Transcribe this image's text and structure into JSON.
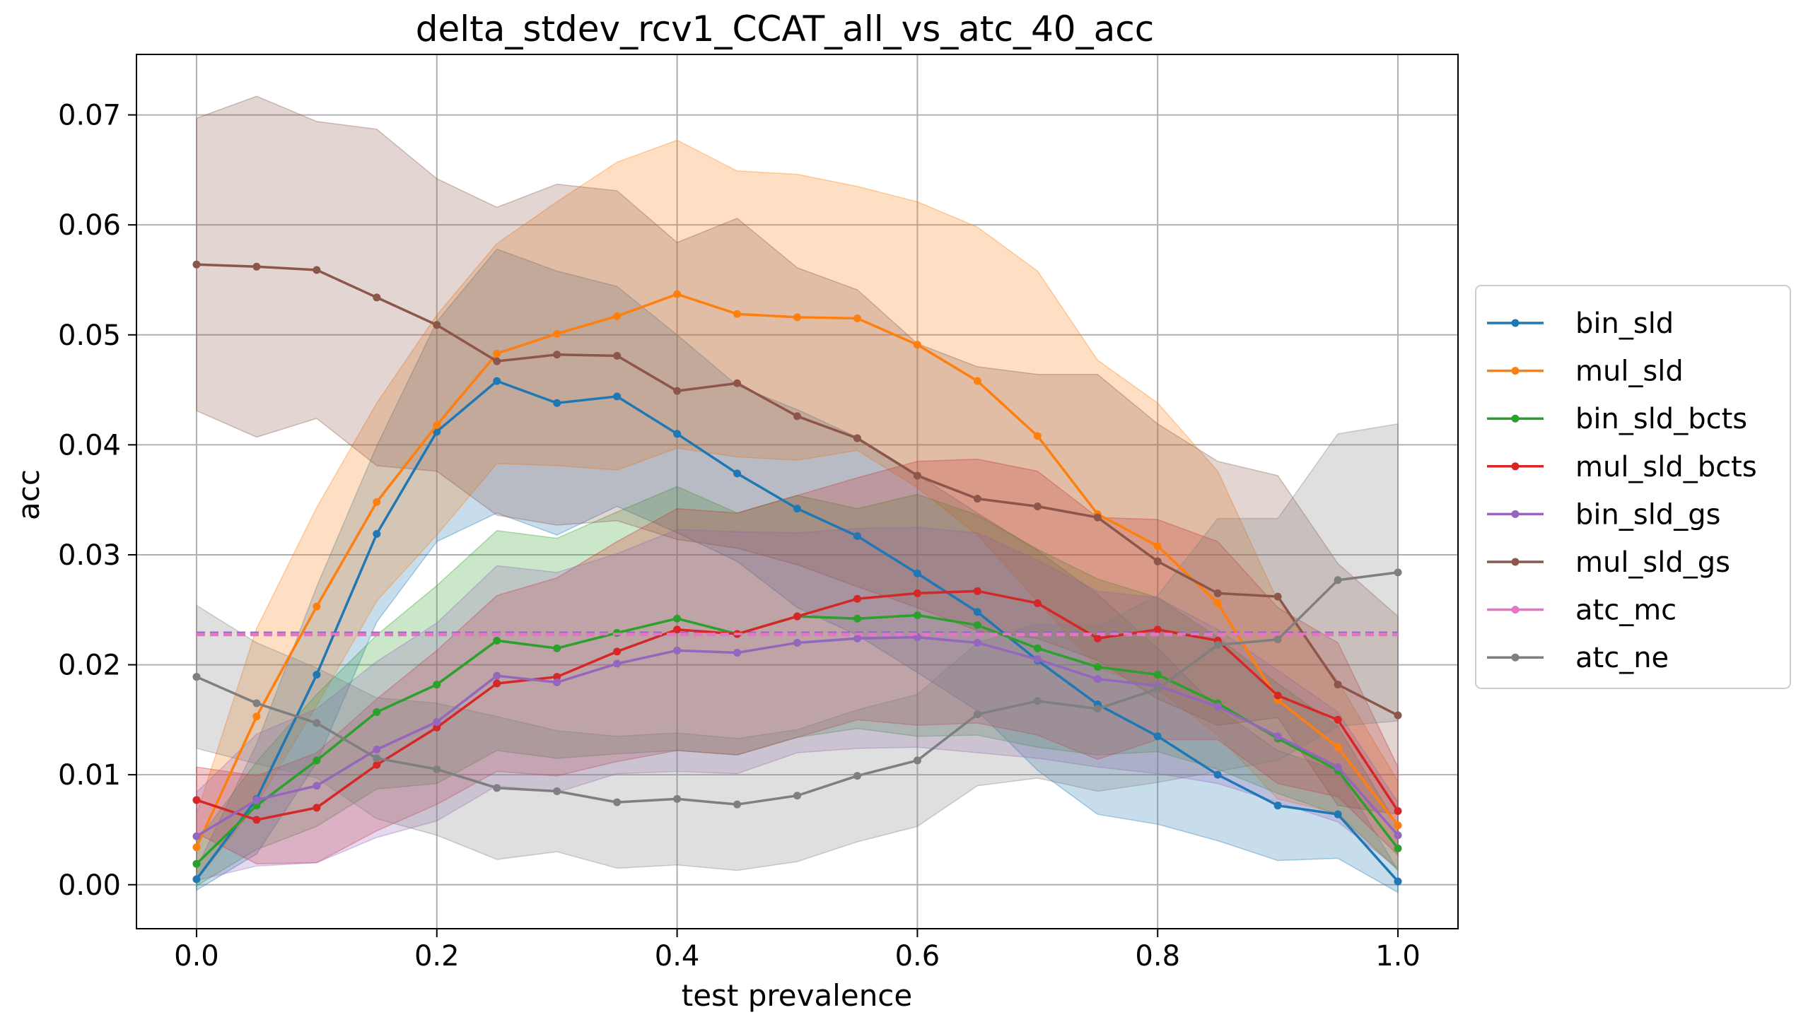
{
  "chart_data": {
    "type": "line",
    "title": "delta_stdev_rcv1_CCAT_all_vs_atc_40_acc",
    "xlabel": "test prevalence",
    "ylabel": "acc",
    "xlim": [
      -0.05,
      1.05
    ],
    "ylim": [
      -0.004,
      0.0755
    ],
    "x_ticks": [
      0.0,
      0.2,
      0.4,
      0.6,
      0.8,
      1.0
    ],
    "x_tick_labels": [
      "0.0",
      "0.2",
      "0.4",
      "0.6",
      "0.8",
      "1.0"
    ],
    "y_ticks": [
      0.0,
      0.01,
      0.02,
      0.03,
      0.04,
      0.05,
      0.06,
      0.07
    ],
    "y_tick_labels": [
      "0.00",
      "0.01",
      "0.02",
      "0.03",
      "0.04",
      "0.05",
      "0.06",
      "0.07"
    ],
    "grid": true,
    "legend_position": "center-right outside",
    "x": [
      0.0,
      0.05,
      0.1,
      0.15,
      0.2,
      0.25,
      0.3,
      0.35,
      0.4,
      0.45,
      0.5,
      0.55,
      0.6,
      0.65,
      0.7,
      0.75,
      0.8,
      0.85,
      0.9,
      0.95,
      1.0
    ],
    "series": [
      {
        "name": "bin_sld",
        "color": "#1f77b4",
        "values": [
          0.0005,
          0.0078,
          0.0191,
          0.0319,
          0.0412,
          0.0458,
          0.0438,
          0.0444,
          0.041,
          0.0374,
          0.0342,
          0.0317,
          0.0283,
          0.0248,
          0.0204,
          0.0164,
          0.0135,
          0.01,
          0.0072,
          0.0064,
          0.0003
        ],
        "band": [
          0.001,
          0.005,
          0.008,
          0.008,
          0.01,
          0.012,
          0.012,
          0.01,
          0.009,
          0.008,
          0.009,
          0.009,
          0.009,
          0.009,
          0.01,
          0.01,
          0.008,
          0.006,
          0.005,
          0.004,
          0.001
        ]
      },
      {
        "name": "mul_sld",
        "color": "#ff7f0e",
        "values": [
          0.0034,
          0.0153,
          0.0253,
          0.0348,
          0.0418,
          0.0483,
          0.0501,
          0.0517,
          0.0537,
          0.0519,
          0.0516,
          0.0515,
          0.0491,
          0.0458,
          0.0408,
          0.0337,
          0.0308,
          0.0256,
          0.0168,
          0.0125,
          0.0054
        ],
        "band": [
          0.003,
          0.008,
          0.009,
          0.009,
          0.01,
          0.01,
          0.012,
          0.014,
          0.014,
          0.013,
          0.013,
          0.012,
          0.013,
          0.014,
          0.015,
          0.014,
          0.013,
          0.012,
          0.009,
          0.006,
          0.004
        ]
      },
      {
        "name": "bin_sld_bcts",
        "color": "#2ca02c",
        "values": [
          0.0019,
          0.0072,
          0.0113,
          0.0157,
          0.0182,
          0.0222,
          0.0215,
          0.0229,
          0.0242,
          0.0228,
          0.0244,
          0.0242,
          0.0245,
          0.0236,
          0.0215,
          0.0198,
          0.0191,
          0.0165,
          0.0133,
          0.0104,
          0.0033
        ],
        "band": [
          0.002,
          0.004,
          0.006,
          0.007,
          0.009,
          0.01,
          0.01,
          0.011,
          0.012,
          0.011,
          0.011,
          0.01,
          0.011,
          0.01,
          0.009,
          0.008,
          0.007,
          0.006,
          0.005,
          0.004,
          0.002
        ]
      },
      {
        "name": "mul_sld_bcts",
        "color": "#d62728",
        "values": [
          0.0077,
          0.0059,
          0.007,
          0.0109,
          0.0143,
          0.0183,
          0.0189,
          0.0212,
          0.0232,
          0.0228,
          0.0244,
          0.026,
          0.0265,
          0.0267,
          0.0256,
          0.0224,
          0.0232,
          0.0222,
          0.0172,
          0.015,
          0.0067
        ],
        "band": [
          0.003,
          0.004,
          0.005,
          0.006,
          0.007,
          0.008,
          0.009,
          0.01,
          0.011,
          0.011,
          0.011,
          0.011,
          0.012,
          0.012,
          0.012,
          0.011,
          0.01,
          0.009,
          0.008,
          0.007,
          0.004
        ]
      },
      {
        "name": "bin_sld_gs",
        "color": "#9467bd",
        "values": [
          0.0044,
          0.0077,
          0.009,
          0.0123,
          0.0148,
          0.019,
          0.0184,
          0.0201,
          0.0213,
          0.0211,
          0.022,
          0.0224,
          0.0225,
          0.022,
          0.0205,
          0.0187,
          0.0181,
          0.0162,
          0.0135,
          0.0107,
          0.0045
        ],
        "band": [
          0.004,
          0.006,
          0.007,
          0.008,
          0.009,
          0.01,
          0.01,
          0.01,
          0.011,
          0.011,
          0.01,
          0.01,
          0.01,
          0.01,
          0.009,
          0.008,
          0.008,
          0.007,
          0.006,
          0.005,
          0.003
        ]
      },
      {
        "name": "mul_sld_gs",
        "color": "#8c564b",
        "values": [
          0.0564,
          0.0562,
          0.0559,
          0.0534,
          0.0509,
          0.0476,
          0.0482,
          0.0481,
          0.0449,
          0.0456,
          0.0426,
          0.0406,
          0.0372,
          0.0351,
          0.0344,
          0.0334,
          0.0294,
          0.0265,
          0.0262,
          0.0182,
          0.0154
        ],
        "band": [
          0.0133,
          0.0155,
          0.0135,
          0.0153,
          0.0133,
          0.014,
          0.0155,
          0.015,
          0.0135,
          0.015,
          0.0135,
          0.0135,
          0.012,
          0.012,
          0.012,
          0.013,
          0.0125,
          0.012,
          0.011,
          0.011,
          0.009
        ]
      },
      {
        "name": "atc_mc",
        "color": "#e377c2",
        "values": [
          0.0228,
          0.0228,
          0.0228,
          0.0228,
          0.0228,
          0.0228,
          0.0228,
          0.0228,
          0.0228,
          0.0228,
          0.0228,
          0.0228,
          0.0228,
          0.0228,
          0.0228,
          0.0228,
          0.0228,
          0.0228,
          0.0228,
          0.0228,
          0.0228
        ],
        "band": [],
        "dashed": true
      },
      {
        "name": "atc_ne",
        "color": "#7f7f7f",
        "values": [
          0.0189,
          0.0165,
          0.0147,
          0.0115,
          0.0105,
          0.0088,
          0.0085,
          0.0075,
          0.0078,
          0.0073,
          0.0081,
          0.0099,
          0.0113,
          0.0155,
          0.0167,
          0.016,
          0.0178,
          0.0218,
          0.0223,
          0.0277,
          0.0284
        ],
        "band": [
          0.0065,
          0.0055,
          0.005,
          0.0055,
          0.006,
          0.0065,
          0.0055,
          0.006,
          0.006,
          0.006,
          0.006,
          0.006,
          0.006,
          0.0065,
          0.007,
          0.0075,
          0.0085,
          0.0115,
          0.011,
          0.0133,
          0.0135
        ]
      }
    ],
    "reference_lines": [
      {
        "color": "#8c564b",
        "value": 0.0229,
        "dashed": true
      },
      {
        "color": "#9467bd",
        "value": 0.0229,
        "dashed": true
      },
      {
        "color": "#e377c2",
        "value": 0.0227,
        "dashed": true
      }
    ]
  }
}
